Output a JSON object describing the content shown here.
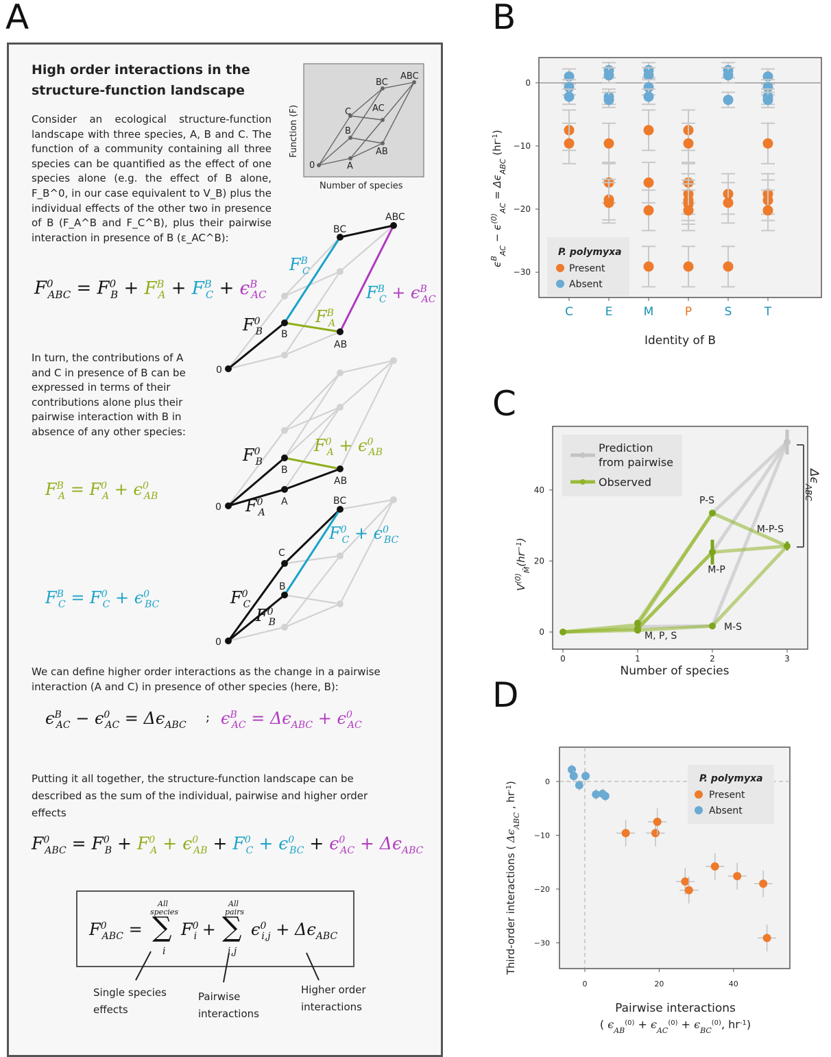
{
  "panel_letters": {
    "a": "A",
    "b": "B",
    "c": "C",
    "d": "D"
  },
  "panelA": {
    "heading_line1": "High order interactions in the",
    "heading_line2": "structure-function landscape",
    "intro": "Consider an ecological structure-function landscape with three species, A, B and C. The function of a community containing all three species can be quantified as the effect of one species alone (e.g. the effect of B alone, F_B^0, in our case equivalent to V_B) plus the individual effects of the other two in presence of B (F_A^B and F_C^B), plus their pairwise interaction in presence of B (ε_AC^B):",
    "inset_ylabel": "Function (F)",
    "inset_xlabel": "Number of species",
    "node_labels": {
      "zero": "0",
      "a": "A",
      "b": "B",
      "c": "C",
      "ab": "AB",
      "ac": "AC",
      "bc": "BC",
      "abc": "ABC"
    },
    "contrib_text": "In turn, the contributions of A and C in presence of B can be expressed in terms of their contributions alone plus their pairwise interaction with B in absence of any other species:",
    "hoi_text": "We can define higher order interactions as the change in a pairwise interaction (A and C) in presence of other species (here, B):",
    "together_text": "Putting it all together, the structure-function landscape can be described as the sum of the individual, pairwise and higher order effects",
    "eq_sep": ";",
    "sum_top_all": "All",
    "sum_top_species": "species",
    "sum_top_pairs": "pairs",
    "sum_idx_i": "i",
    "sum_idx_ij": "i,j",
    "caption_single_1": "Single species",
    "caption_single_2": "effects",
    "caption_pair_1": "Pairwise",
    "caption_pair_2": "interactions",
    "caption_higher_1": "Higher order",
    "caption_higher_2": "interactions"
  },
  "chart_data": [
    {
      "panel": "B",
      "type": "scatter",
      "ylabel": "ε_AC^B − ε_AC^(0) = Δε_ABC (hr^-1)",
      "xlabel": "Identity of B",
      "categories": [
        "C",
        "E",
        "M",
        "P",
        "S",
        "T"
      ],
      "category_colors": [
        "#1a8fb5",
        "#1a8fb5",
        "#1a8fb5",
        "#e8741e",
        "#1a8fb5",
        "#1a8fb5"
      ],
      "ylim": [
        -34,
        4
      ],
      "yticks": [
        0,
        -10,
        -20,
        -30
      ],
      "legend_title": "P. polymyxa",
      "series": [
        {
          "name": "Present",
          "color": "#ee7a2b",
          "points": [
            [
              "C",
              -7.5
            ],
            [
              "C",
              -9.6
            ],
            [
              "E",
              -9.6
            ],
            [
              "E",
              -15.8
            ],
            [
              "E",
              -18.5
            ],
            [
              "E",
              -19
            ],
            [
              "M",
              -7.5
            ],
            [
              "M",
              -15.8
            ],
            [
              "M",
              -20.2
            ],
            [
              "M",
              -29.1
            ],
            [
              "P",
              -7.5
            ],
            [
              "P",
              -9.6
            ],
            [
              "P",
              -15.8
            ],
            [
              "P",
              -17.6
            ],
            [
              "P",
              -18.6
            ],
            [
              "P",
              -19.2
            ],
            [
              "P",
              -20.2
            ],
            [
              "P",
              -29.1
            ],
            [
              "S",
              -17.6
            ],
            [
              "S",
              -19
            ],
            [
              "S",
              -29.1
            ],
            [
              "T",
              -9.6
            ],
            [
              "T",
              -17.6
            ],
            [
              "T",
              -18.6
            ],
            [
              "T",
              -20.2
            ]
          ]
        },
        {
          "name": "Absent",
          "color": "#6aaad3",
          "points": [
            [
              "C",
              1
            ],
            [
              "C",
              -0.7
            ],
            [
              "C",
              -2.2
            ],
            [
              "E",
              2
            ],
            [
              "E",
              1.2
            ],
            [
              "E",
              -2.2
            ],
            [
              "E",
              -2.7
            ],
            [
              "M",
              2
            ],
            [
              "M",
              1.2
            ],
            [
              "M",
              -0.7
            ],
            [
              "M",
              -2.2
            ],
            [
              "S",
              2
            ],
            [
              "S",
              1.2
            ],
            [
              "S",
              -2.7
            ],
            [
              "T",
              1
            ],
            [
              "T",
              -0.7
            ],
            [
              "T",
              -2.2
            ],
            [
              "T",
              -2.7
            ]
          ]
        }
      ]
    },
    {
      "panel": "C",
      "type": "line",
      "ylabel": "V_M̃^(0) (hr^-1)",
      "xlabel": "Number of species",
      "x_ticks": [
        0,
        1,
        2,
        3
      ],
      "y_ticks": [
        0,
        20,
        40
      ],
      "xlim": [
        -0.1,
        3.1
      ],
      "ylim": [
        -2,
        57
      ],
      "legend": [
        "Prediction from pairwise",
        "Observed"
      ],
      "annotations": [
        "P-S",
        "M-P",
        "M-S",
        "M-P-S",
        "M, P, S",
        "Δε_ABC"
      ],
      "series": [
        {
          "name": "Prediction from pairwise",
          "color": "#c9c9c9",
          "paths": [
            [
              [
                2,
                33.5
              ],
              [
                3,
                53.5
              ]
            ],
            [
              [
                2,
                22.5
              ],
              [
                3,
                53.5
              ]
            ],
            [
              [
                2,
                1.7
              ],
              [
                3,
                53.5
              ]
            ],
            [
              [
                1,
                1.5
              ],
              [
                2,
                1.7
              ]
            ]
          ]
        },
        {
          "name": "Observed",
          "color": "#8fb52a",
          "paths": [
            [
              [
                0,
                0
              ],
              [
                1,
                2
              ],
              [
                2,
                33.5
              ],
              [
                3,
                24.2
              ]
            ],
            [
              [
                0,
                0
              ],
              [
                1,
                1
              ],
              [
                2,
                22.5
              ],
              [
                3,
                24.2
              ]
            ],
            [
              [
                0,
                0
              ],
              [
                1,
                0.5
              ],
              [
                2,
                1.7
              ],
              [
                3,
                24.2
              ]
            ],
            [
              [
                1,
                2.7
              ],
              [
                2,
                33.5
              ]
            ],
            [
              [
                1,
                0.9
              ],
              [
                2,
                22.5
              ]
            ]
          ]
        }
      ],
      "points": [
        [
          0,
          0
        ],
        [
          1,
          2.5
        ],
        [
          1,
          1
        ],
        [
          1,
          0.5
        ],
        [
          2,
          33.5
        ],
        [
          2,
          22.5
        ],
        [
          2,
          1.7
        ],
        [
          3,
          24.2
        ],
        [
          3,
          53.5
        ]
      ]
    },
    {
      "panel": "D",
      "type": "scatter",
      "xlabel_line1": "Pairwise interactions",
      "xlabel_line2": "( ε_AB^(0) + ε_AC^(0) + ε_BC^(0) , hr^-1)",
      "ylabel": "Third-order interactions ( Δε_ABC , hr^-1)",
      "xlim": [
        -7,
        55
      ],
      "ylim": [
        -34,
        4
      ],
      "x_ticks": [
        0,
        20,
        40
      ],
      "y_ticks": [
        0,
        -10,
        -20,
        -30
      ],
      "legend_title": "P. polymyxa",
      "series": [
        {
          "name": "Present",
          "color": "#ee7a2b",
          "points": [
            [
              11,
              -9.6
            ],
            [
              19,
              -9.6
            ],
            [
              19.5,
              -7.5
            ],
            [
              27,
              -18.6
            ],
            [
              28,
              -20.2
            ],
            [
              35,
              -15.8
            ],
            [
              41,
              -17.6
            ],
            [
              48,
              -19
            ],
            [
              49,
              -29.1
            ]
          ]
        },
        {
          "name": "Absent",
          "color": "#6aaad3",
          "points": [
            [
              -3.5,
              2.2
            ],
            [
              -3,
              1
            ],
            [
              -1.5,
              -0.7
            ],
            [
              0.2,
              1
            ],
            [
              3,
              -2.4
            ],
            [
              4.8,
              -2.3
            ],
            [
              5.5,
              -2.7
            ]
          ]
        }
      ]
    }
  ]
}
